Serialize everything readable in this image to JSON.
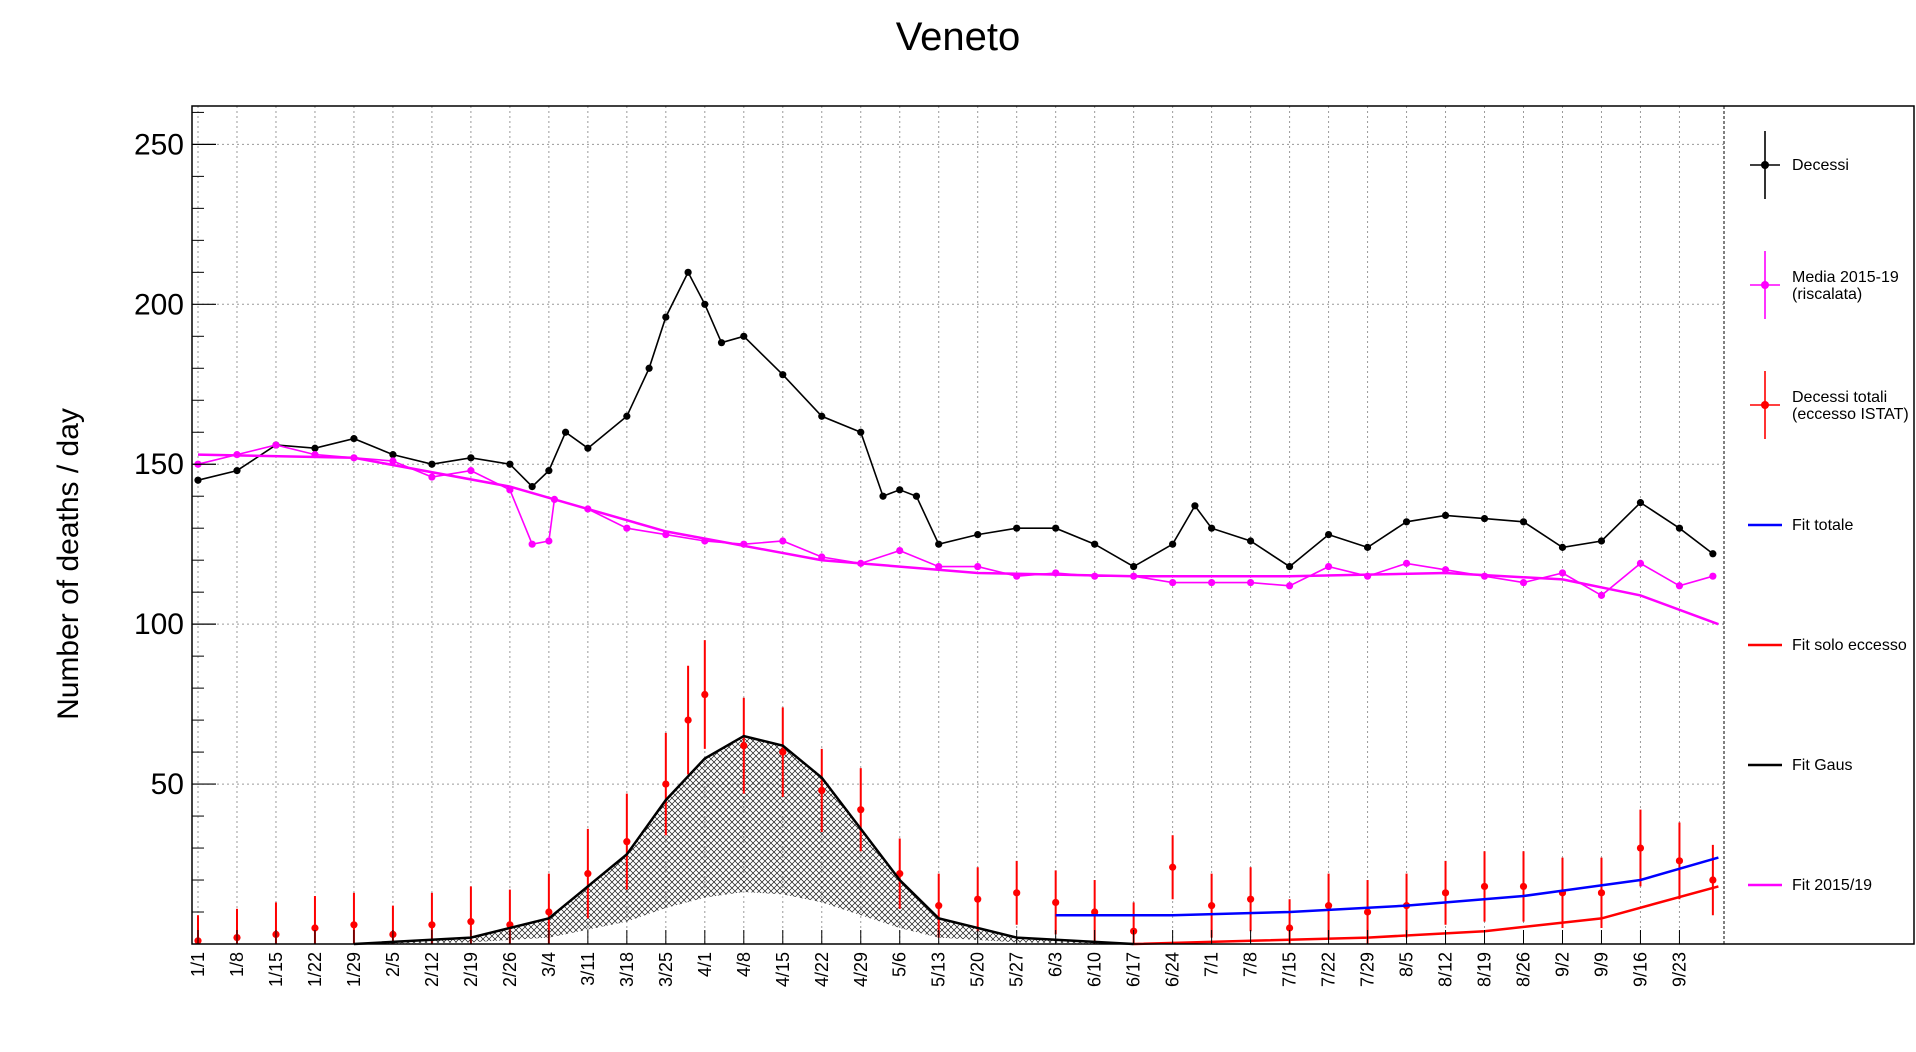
{
  "chart_data": {
    "type": "line",
    "title": "Veneto",
    "xlabel": "",
    "ylabel": "Number of deaths / day",
    "xlim": [
      "1/1",
      "10/1"
    ],
    "ylim": [
      0,
      262
    ],
    "yticks": [
      50,
      100,
      150,
      200,
      250
    ],
    "x_tick_labels": [
      "1/1",
      "1/8",
      "1/15",
      "1/22",
      "1/29",
      "2/5",
      "2/12",
      "2/19",
      "2/26",
      "3/4",
      "3/11",
      "3/18",
      "3/25",
      "4/1",
      "4/8",
      "4/15",
      "4/22",
      "4/29",
      "5/6",
      "5/13",
      "5/20",
      "5/27",
      "6/3",
      "6/10",
      "6/17",
      "6/24",
      "7/1",
      "7/8",
      "7/15",
      "7/22",
      "7/29",
      "8/5",
      "8/12",
      "8/19",
      "8/26",
      "9/2",
      "9/9",
      "9/16",
      "9/23"
    ],
    "grid": true,
    "legend_position": "right",
    "series": [
      {
        "name": "Decessi",
        "color": "#000000",
        "style": "line-markers",
        "x": [
          "1/1",
          "1/8",
          "1/15",
          "1/22",
          "1/29",
          "2/5",
          "2/12",
          "2/19",
          "2/26",
          "3/1",
          "3/4",
          "3/7",
          "3/11",
          "3/18",
          "3/22",
          "3/25",
          "3/29",
          "4/1",
          "4/4",
          "4/8",
          "4/15",
          "4/22",
          "4/29",
          "5/3",
          "5/6",
          "5/9",
          "5/13",
          "5/20",
          "5/27",
          "6/3",
          "6/10",
          "6/17",
          "6/24",
          "6/28",
          "7/1",
          "7/8",
          "7/15",
          "7/22",
          "7/29",
          "8/5",
          "8/12",
          "8/19",
          "8/26",
          "9/2",
          "9/9",
          "9/16",
          "9/23",
          "9/29"
        ],
        "y": [
          145,
          148,
          156,
          155,
          158,
          153,
          150,
          152,
          150,
          143,
          148,
          160,
          155,
          165,
          180,
          196,
          210,
          200,
          188,
          190,
          178,
          165,
          160,
          140,
          142,
          140,
          125,
          128,
          130,
          130,
          125,
          118,
          125,
          137,
          130,
          126,
          118,
          128,
          124,
          132,
          134,
          133,
          132,
          124,
          126,
          138,
          130,
          122
        ]
      },
      {
        "name": "Media 2015-19\n(riscalata)",
        "color": "#ff00ff",
        "style": "line-markers",
        "x": [
          "1/1",
          "1/8",
          "1/15",
          "1/22",
          "1/29",
          "2/5",
          "2/12",
          "2/19",
          "2/26",
          "3/1",
          "3/4",
          "3/5",
          "3/11",
          "3/18",
          "3/25",
          "4/1",
          "4/8",
          "4/15",
          "4/22",
          "4/29",
          "5/6",
          "5/13",
          "5/20",
          "5/27",
          "6/3",
          "6/10",
          "6/17",
          "6/24",
          "7/1",
          "7/8",
          "7/15",
          "7/22",
          "7/29",
          "8/5",
          "8/12",
          "8/19",
          "8/26",
          "9/2",
          "9/9",
          "9/16",
          "9/23",
          "9/29"
        ],
        "y": [
          150,
          153,
          156,
          153,
          152,
          151,
          146,
          148,
          142,
          125,
          126,
          139,
          136,
          130,
          128,
          126,
          125,
          126,
          121,
          119,
          123,
          118,
          118,
          115,
          116,
          115,
          115,
          113,
          113,
          113,
          112,
          118,
          115,
          119,
          117,
          115,
          113,
          116,
          109,
          119,
          112,
          115
        ]
      },
      {
        "name": "Decessi totali\n(eccesso ISTAT)",
        "color": "#ff0000",
        "style": "markers-errorbars",
        "x": [
          "1/1",
          "1/8",
          "1/15",
          "1/22",
          "1/29",
          "2/5",
          "2/12",
          "2/19",
          "2/26",
          "3/4",
          "3/11",
          "3/18",
          "3/25",
          "3/29",
          "4/1",
          "4/8",
          "4/15",
          "4/22",
          "4/29",
          "5/6",
          "5/13",
          "5/20",
          "5/27",
          "6/3",
          "6/10",
          "6/17",
          "6/24",
          "7/1",
          "7/8",
          "7/15",
          "7/22",
          "7/29",
          "8/5",
          "8/12",
          "8/19",
          "8/26",
          "9/2",
          "9/9",
          "9/16",
          "9/23",
          "9/29"
        ],
        "y": [
          1,
          2,
          3,
          5,
          6,
          3,
          6,
          7,
          6,
          10,
          22,
          32,
          50,
          70,
          78,
          62,
          60,
          48,
          42,
          22,
          12,
          14,
          16,
          13,
          10,
          4,
          24,
          12,
          14,
          5,
          12,
          10,
          12,
          16,
          18,
          18,
          16,
          16,
          30,
          26,
          20
        ],
        "err": [
          8,
          9,
          10,
          10,
          10,
          9,
          10,
          11,
          11,
          12,
          14,
          15,
          16,
          17,
          17,
          15,
          14,
          13,
          13,
          11,
          10,
          10,
          10,
          10,
          10,
          9,
          10,
          10,
          10,
          9,
          10,
          10,
          10,
          10,
          11,
          11,
          11,
          11,
          12,
          12,
          11
        ]
      },
      {
        "name": "Fit totale",
        "color": "#0000ff",
        "style": "line",
        "x": [
          "6/3",
          "6/24",
          "7/15",
          "8/5",
          "8/26",
          "9/16",
          "9/30"
        ],
        "y": [
          9,
          9,
          10,
          12,
          15,
          20,
          27
        ]
      },
      {
        "name": "Fit solo eccesso",
        "color": "#ff0000",
        "style": "line",
        "x": [
          "6/17",
          "7/8",
          "7/29",
          "8/19",
          "9/9",
          "9/30"
        ],
        "y": [
          0,
          1,
          2,
          4,
          8,
          18
        ]
      },
      {
        "name": "Fit Gaus",
        "color": "#000000",
        "style": "line",
        "x": [
          "1/29",
          "2/19",
          "3/4",
          "3/18",
          "3/25",
          "4/1",
          "4/8",
          "4/15",
          "4/22",
          "4/29",
          "5/6",
          "5/13",
          "5/27",
          "6/17"
        ],
        "y": [
          0,
          2,
          8,
          28,
          45,
          58,
          65,
          62,
          52,
          36,
          20,
          8,
          2,
          0
        ]
      },
      {
        "name": "Fit 2015/19",
        "color": "#ff00ff",
        "style": "line",
        "x": [
          "1/1",
          "1/29",
          "2/26",
          "3/25",
          "4/22",
          "5/20",
          "6/17",
          "7/15",
          "8/12",
          "9/2",
          "9/16",
          "9/30"
        ],
        "y": [
          153,
          152,
          143,
          129,
          120,
          116,
          115,
          115,
          116,
          114,
          109,
          100
        ]
      }
    ]
  }
}
